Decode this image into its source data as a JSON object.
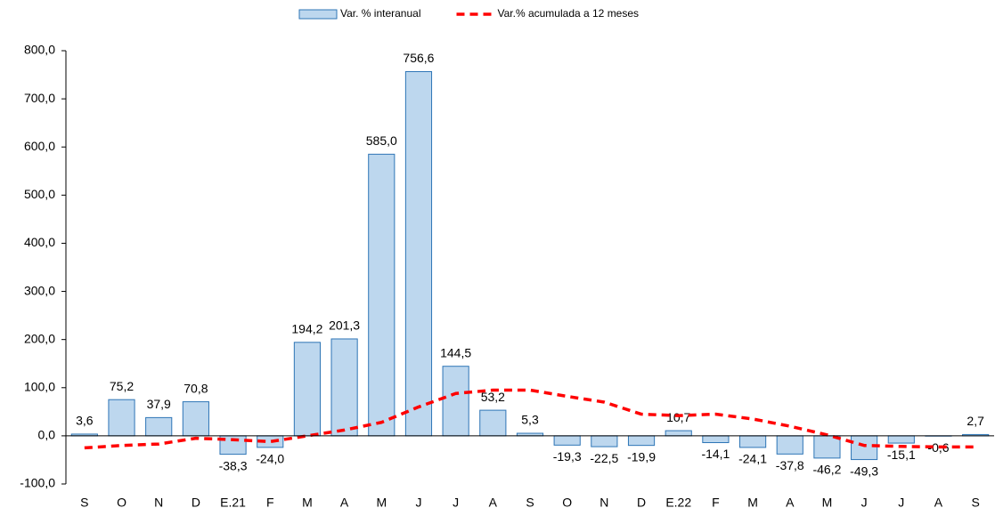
{
  "chart_data": {
    "type": "bar",
    "categories": [
      "S",
      "O",
      "N",
      "D",
      "E.21",
      "F",
      "M",
      "A",
      "M",
      "J",
      "J",
      "A",
      "S",
      "O",
      "N",
      "D",
      "E.22",
      "F",
      "M",
      "A",
      "M",
      "J",
      "J",
      "A",
      "S"
    ],
    "series": [
      {
        "name": "Var. % interanual",
        "type": "bar",
        "color": "#bdd7ee",
        "edge_color": "#2e75b6",
        "values": [
          3.6,
          75.2,
          37.9,
          70.8,
          -38.3,
          -24.0,
          194.2,
          201.3,
          585.0,
          756.6,
          144.5,
          53.2,
          5.3,
          -19.3,
          -22.5,
          -19.9,
          10.7,
          -14.1,
          -24.1,
          -37.8,
          -46.2,
          -49.3,
          -15.1,
          -0.6,
          2.7
        ],
        "value_labels": [
          "3,6",
          "75,2",
          "37,9",
          "70,8",
          "-38,3",
          "-24,0",
          "194,2",
          "201,3",
          "585,0",
          "756,6",
          "144,5",
          "53,2",
          "5,3",
          "-19,3",
          "-22,5",
          "-19,9",
          "10,7",
          "-14,1",
          "-24,1",
          "-37,8",
          "-46,2",
          "-49,3",
          "-15,1",
          "-0,6",
          "2,7"
        ]
      },
      {
        "name": "Var.% acumulada a 12 meses",
        "type": "line",
        "color": "#ff0000",
        "dashed": true,
        "values": [
          -25,
          -20,
          -17,
          -5,
          -8,
          -12,
          0,
          12,
          28,
          60,
          88,
          95,
          95,
          82,
          70,
          45,
          42,
          45,
          35,
          20,
          2,
          -20,
          -22,
          -23,
          -23
        ]
      }
    ],
    "ylim": [
      -100,
      800
    ],
    "yticks": [
      {
        "value": -100,
        "label": "-100,0"
      },
      {
        "value": 0,
        "label": "0,0"
      },
      {
        "value": 100,
        "label": "100,0"
      },
      {
        "value": 200,
        "label": "200,0"
      },
      {
        "value": 300,
        "label": "300,0"
      },
      {
        "value": 400,
        "label": "400,0"
      },
      {
        "value": 500,
        "label": "500,0"
      },
      {
        "value": 600,
        "label": "600,0"
      },
      {
        "value": 700,
        "label": "700,0"
      },
      {
        "value": 800,
        "label": "800,0"
      }
    ],
    "legend": "top"
  }
}
